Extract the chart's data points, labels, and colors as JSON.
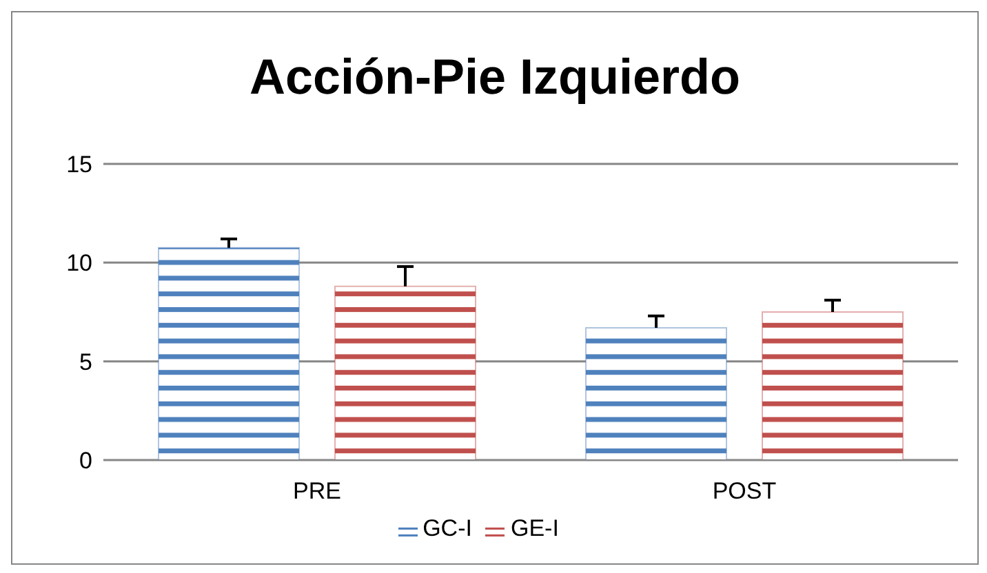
{
  "chart_data": {
    "type": "bar",
    "title": "Acción-Pie Izquierdo",
    "categories": [
      "PRE",
      "POST"
    ],
    "series": [
      {
        "name": "GC-I",
        "color": "#4f81bd",
        "values": [
          10.75,
          6.7
        ],
        "errors": [
          [
            10.75,
            11.2
          ],
          [
            6.7,
            7.3
          ]
        ]
      },
      {
        "name": "GE-I",
        "color": "#c0504d",
        "values": [
          8.8,
          7.5
        ],
        "errors": [
          [
            8.8,
            9.8
          ],
          [
            7.5,
            8.1
          ]
        ]
      }
    ],
    "ylim": [
      0,
      15
    ],
    "yticks": [
      0,
      5,
      10,
      15
    ],
    "grid": "y",
    "legend": "bottom"
  }
}
